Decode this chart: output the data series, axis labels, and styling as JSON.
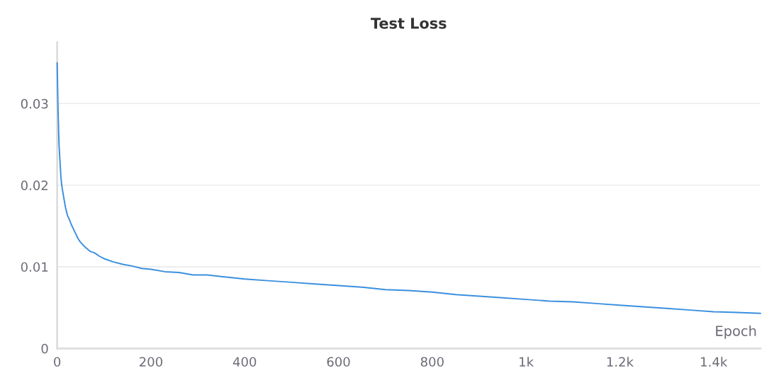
{
  "chart_data": {
    "type": "line",
    "title": "Test Loss",
    "xlabel": "Epoch",
    "x": [
      0,
      2,
      4,
      6,
      8,
      10,
      14,
      18,
      22,
      26,
      30,
      35,
      40,
      45,
      50,
      60,
      70,
      80,
      90,
      100,
      120,
      140,
      160,
      180,
      200,
      230,
      260,
      290,
      320,
      350,
      400,
      450,
      500,
      550,
      600,
      650,
      700,
      750,
      800,
      850,
      900,
      950,
      1000,
      1050,
      1100,
      1150,
      1200,
      1250,
      1300,
      1350,
      1400,
      1450,
      1500
    ],
    "series": [
      {
        "color": "#3a8fdf",
        "values": [
          0.035,
          0.029,
          0.025,
          0.023,
          0.021,
          0.0199,
          0.0185,
          0.0172,
          0.0163,
          0.0158,
          0.0152,
          0.0146,
          0.014,
          0.0134,
          0.013,
          0.0124,
          0.0119,
          0.0117,
          0.0113,
          0.011,
          0.0106,
          0.0103,
          0.0101,
          0.0098,
          0.0097,
          0.0094,
          0.0093,
          0.009,
          0.009,
          0.0088,
          0.0085,
          0.0083,
          0.0081,
          0.0079,
          0.0077,
          0.0075,
          0.0072,
          0.0071,
          0.0069,
          0.0066,
          0.0064,
          0.0062,
          0.006,
          0.0058,
          0.0057,
          0.0055,
          0.0053,
          0.0051,
          0.0049,
          0.0047,
          0.0045,
          0.0044,
          0.0043
        ]
      }
    ],
    "xlim": [
      0,
      1500
    ],
    "ylim": [
      0,
      0.0375
    ],
    "xticks": [
      0,
      200,
      400,
      600,
      800,
      {
        "value": 1000,
        "label": "1k"
      },
      {
        "value": 1200,
        "label": "1.2k"
      },
      {
        "value": 1400,
        "label": "1.4k"
      }
    ],
    "yticks": [
      0,
      0.01,
      0.02,
      0.03
    ],
    "grid": "y",
    "line_style": "solid",
    "marker": "none"
  }
}
